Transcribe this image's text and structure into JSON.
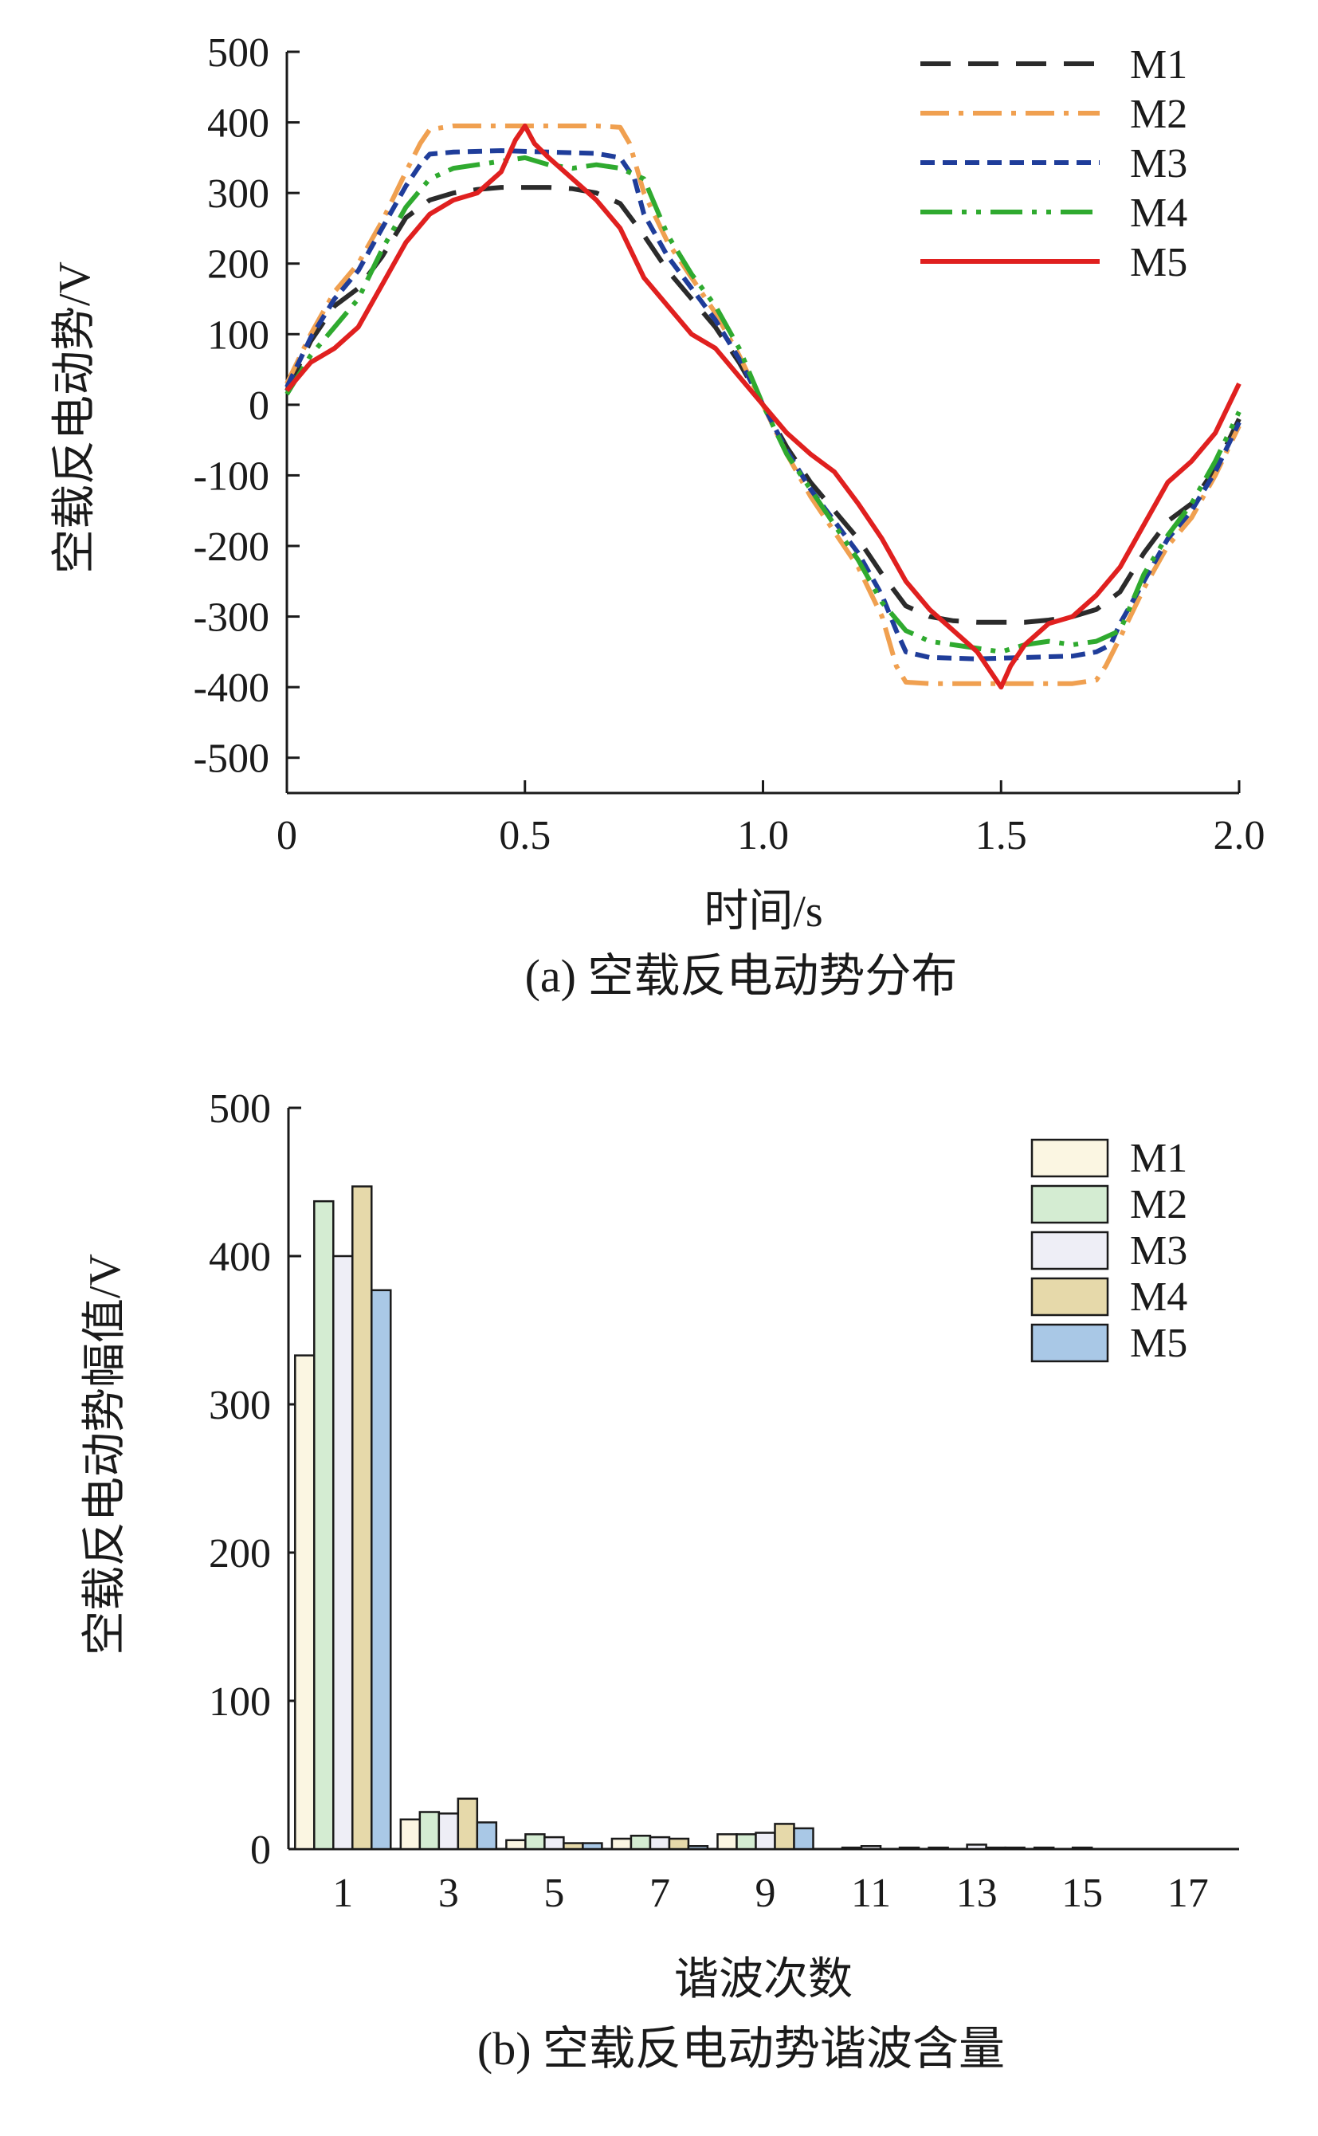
{
  "chart_data": [
    {
      "type": "line",
      "caption": "(a) 空载反电动势分布",
      "xlabel": "时间/s",
      "ylabel": "空载反电动势/V",
      "xlim": [
        0,
        2.0
      ],
      "ylim": [
        -550,
        500
      ],
      "x_ticks": [
        "0",
        "0.5",
        "1.0",
        "1.5",
        "2.0"
      ],
      "x_tick_values": [
        0,
        0.5,
        1.0,
        1.5,
        2.0
      ],
      "y_ticks": [
        "500",
        "400",
        "300",
        "200",
        "100",
        "0",
        "-100",
        "-200",
        "-300",
        "-400",
        "-500"
      ],
      "y_tick_values": [
        500,
        400,
        300,
        200,
        100,
        0,
        -100,
        -200,
        -300,
        -400,
        -500
      ],
      "legend_position": "top-right",
      "series": [
        {
          "name": "M1",
          "color": "#2b2b2b",
          "dash": "dash",
          "points": [
            [
              0,
              20
            ],
            [
              0.05,
              90
            ],
            [
              0.1,
              140
            ],
            [
              0.15,
              165
            ],
            [
              0.2,
              210
            ],
            [
              0.25,
              265
            ],
            [
              0.3,
              290
            ],
            [
              0.35,
              300
            ],
            [
              0.4,
              305
            ],
            [
              0.45,
              308
            ],
            [
              0.5,
              308
            ],
            [
              0.55,
              308
            ],
            [
              0.6,
              306
            ],
            [
              0.65,
              300
            ],
            [
              0.7,
              285
            ],
            [
              0.75,
              240
            ],
            [
              0.8,
              190
            ],
            [
              0.85,
              150
            ],
            [
              0.9,
              110
            ],
            [
              0.95,
              60
            ],
            [
              1.0,
              0
            ],
            [
              1.05,
              -60
            ],
            [
              1.1,
              -110
            ],
            [
              1.15,
              -150
            ],
            [
              1.2,
              -190
            ],
            [
              1.25,
              -240
            ],
            [
              1.3,
              -285
            ],
            [
              1.35,
              -300
            ],
            [
              1.4,
              -306
            ],
            [
              1.45,
              -308
            ],
            [
              1.5,
              -308
            ],
            [
              1.55,
              -308
            ],
            [
              1.6,
              -305
            ],
            [
              1.65,
              -300
            ],
            [
              1.7,
              -290
            ],
            [
              1.75,
              -265
            ],
            [
              1.8,
              -210
            ],
            [
              1.85,
              -165
            ],
            [
              1.9,
              -140
            ],
            [
              1.95,
              -90
            ],
            [
              2.0,
              -20
            ]
          ]
        },
        {
          "name": "M2",
          "color": "#f0a050",
          "dash": "dashdot",
          "points": [
            [
              0,
              30
            ],
            [
              0.05,
              100
            ],
            [
              0.1,
              160
            ],
            [
              0.15,
              200
            ],
            [
              0.2,
              260
            ],
            [
              0.25,
              330
            ],
            [
              0.28,
              370
            ],
            [
              0.3,
              390
            ],
            [
              0.35,
              395
            ],
            [
              0.45,
              395
            ],
            [
              0.55,
              395
            ],
            [
              0.65,
              395
            ],
            [
              0.7,
              393
            ],
            [
              0.72,
              370
            ],
            [
              0.75,
              300
            ],
            [
              0.8,
              230
            ],
            [
              0.85,
              180
            ],
            [
              0.9,
              130
            ],
            [
              0.95,
              70
            ],
            [
              1.0,
              0
            ],
            [
              1.05,
              -70
            ],
            [
              1.1,
              -130
            ],
            [
              1.15,
              -180
            ],
            [
              1.2,
              -230
            ],
            [
              1.25,
              -300
            ],
            [
              1.28,
              -370
            ],
            [
              1.3,
              -393
            ],
            [
              1.35,
              -395
            ],
            [
              1.45,
              -395
            ],
            [
              1.55,
              -395
            ],
            [
              1.65,
              -395
            ],
            [
              1.7,
              -390
            ],
            [
              1.72,
              -370
            ],
            [
              1.75,
              -330
            ],
            [
              1.8,
              -260
            ],
            [
              1.85,
              -200
            ],
            [
              1.9,
              -160
            ],
            [
              1.95,
              -100
            ],
            [
              2.0,
              -30
            ]
          ]
        },
        {
          "name": "M3",
          "color": "#1f3d9a",
          "dash": "shortdash",
          "points": [
            [
              0,
              25
            ],
            [
              0.05,
              95
            ],
            [
              0.1,
              150
            ],
            [
              0.15,
              190
            ],
            [
              0.2,
              250
            ],
            [
              0.25,
              310
            ],
            [
              0.28,
              340
            ],
            [
              0.3,
              355
            ],
            [
              0.35,
              358
            ],
            [
              0.45,
              360
            ],
            [
              0.55,
              358
            ],
            [
              0.65,
              356
            ],
            [
              0.7,
              350
            ],
            [
              0.73,
              320
            ],
            [
              0.75,
              270
            ],
            [
              0.8,
              210
            ],
            [
              0.85,
              165
            ],
            [
              0.9,
              120
            ],
            [
              0.95,
              65
            ],
            [
              1.0,
              0
            ],
            [
              1.05,
              -65
            ],
            [
              1.1,
              -120
            ],
            [
              1.15,
              -165
            ],
            [
              1.2,
              -210
            ],
            [
              1.25,
              -270
            ],
            [
              1.28,
              -320
            ],
            [
              1.3,
              -350
            ],
            [
              1.35,
              -358
            ],
            [
              1.45,
              -360
            ],
            [
              1.55,
              -358
            ],
            [
              1.65,
              -356
            ],
            [
              1.7,
              -350
            ],
            [
              1.73,
              -340
            ],
            [
              1.75,
              -310
            ],
            [
              1.8,
              -250
            ],
            [
              1.85,
              -190
            ],
            [
              1.9,
              -150
            ],
            [
              1.95,
              -95
            ],
            [
              2.0,
              -25
            ]
          ]
        },
        {
          "name": "M4",
          "color": "#2faa2f",
          "dash": "longdashdotdot",
          "points": [
            [
              0,
              15
            ],
            [
              0.05,
              70
            ],
            [
              0.1,
              110
            ],
            [
              0.15,
              150
            ],
            [
              0.2,
              220
            ],
            [
              0.25,
              280
            ],
            [
              0.3,
              320
            ],
            [
              0.35,
              335
            ],
            [
              0.4,
              340
            ],
            [
              0.45,
              345
            ],
            [
              0.5,
              350
            ],
            [
              0.55,
              340
            ],
            [
              0.6,
              335
            ],
            [
              0.65,
              340
            ],
            [
              0.7,
              335
            ],
            [
              0.75,
              320
            ],
            [
              0.8,
              240
            ],
            [
              0.85,
              185
            ],
            [
              0.9,
              140
            ],
            [
              0.95,
              80
            ],
            [
              1.0,
              0
            ],
            [
              1.05,
              -70
            ],
            [
              1.1,
              -120
            ],
            [
              1.15,
              -170
            ],
            [
              1.2,
              -220
            ],
            [
              1.25,
              -280
            ],
            [
              1.3,
              -320
            ],
            [
              1.35,
              -335
            ],
            [
              1.4,
              -340
            ],
            [
              1.45,
              -345
            ],
            [
              1.5,
              -350
            ],
            [
              1.55,
              -340
            ],
            [
              1.6,
              -335
            ],
            [
              1.65,
              -340
            ],
            [
              1.7,
              -335
            ],
            [
              1.75,
              -320
            ],
            [
              1.8,
              -240
            ],
            [
              1.85,
              -185
            ],
            [
              1.9,
              -140
            ],
            [
              1.95,
              -80
            ],
            [
              2.0,
              -10
            ]
          ]
        },
        {
          "name": "M5",
          "color": "#e0201f",
          "dash": "solid",
          "points": [
            [
              0,
              20
            ],
            [
              0.05,
              60
            ],
            [
              0.1,
              80
            ],
            [
              0.15,
              110
            ],
            [
              0.2,
              170
            ],
            [
              0.25,
              230
            ],
            [
              0.3,
              270
            ],
            [
              0.35,
              290
            ],
            [
              0.4,
              300
            ],
            [
              0.45,
              330
            ],
            [
              0.48,
              375
            ],
            [
              0.5,
              395
            ],
            [
              0.52,
              370
            ],
            [
              0.55,
              350
            ],
            [
              0.6,
              320
            ],
            [
              0.65,
              290
            ],
            [
              0.7,
              250
            ],
            [
              0.75,
              180
            ],
            [
              0.8,
              140
            ],
            [
              0.85,
              100
            ],
            [
              0.9,
              80
            ],
            [
              0.95,
              40
            ],
            [
              1.0,
              0
            ],
            [
              1.05,
              -40
            ],
            [
              1.1,
              -70
            ],
            [
              1.15,
              -95
            ],
            [
              1.2,
              -140
            ],
            [
              1.25,
              -190
            ],
            [
              1.3,
              -250
            ],
            [
              1.35,
              -290
            ],
            [
              1.4,
              -320
            ],
            [
              1.45,
              -350
            ],
            [
              1.48,
              -380
            ],
            [
              1.5,
              -400
            ],
            [
              1.52,
              -370
            ],
            [
              1.55,
              -340
            ],
            [
              1.6,
              -310
            ],
            [
              1.65,
              -300
            ],
            [
              1.7,
              -270
            ],
            [
              1.75,
              -230
            ],
            [
              1.8,
              -170
            ],
            [
              1.85,
              -110
            ],
            [
              1.9,
              -80
            ],
            [
              1.95,
              -40
            ],
            [
              2.0,
              30
            ]
          ]
        }
      ]
    },
    {
      "type": "bar",
      "caption": "(b) 空载反电动势谐波含量",
      "xlabel": "谐波次数",
      "ylabel": "空载反电动势幅值/V",
      "ylim": [
        0,
        500
      ],
      "y_ticks": [
        "500",
        "400",
        "300",
        "200",
        "100",
        "0"
      ],
      "y_tick_values": [
        500,
        400,
        300,
        200,
        100,
        0
      ],
      "categories": [
        "1",
        "3",
        "5",
        "7",
        "9",
        "11",
        "13",
        "15",
        "17"
      ],
      "legend_position": "top-right",
      "series": [
        {
          "name": "M1",
          "color": "#fbf6e2",
          "values": [
            333,
            20,
            6,
            7,
            10,
            0,
            1,
            1,
            0
          ]
        },
        {
          "name": "M2",
          "color": "#d4ecd2",
          "values": [
            437,
            25,
            10,
            9,
            10,
            1,
            0,
            0,
            0
          ]
        },
        {
          "name": "M3",
          "color": "#eeeef6",
          "values": [
            400,
            24,
            8,
            8,
            11,
            2,
            3,
            1,
            0
          ]
        },
        {
          "name": "M4",
          "color": "#e6d9aa",
          "values": [
            447,
            34,
            4,
            7,
            17,
            0,
            1,
            0,
            0
          ]
        },
        {
          "name": "M5",
          "color": "#a9c8e6",
          "values": [
            377,
            18,
            4,
            2,
            14,
            1,
            1,
            0,
            0
          ]
        }
      ]
    }
  ]
}
